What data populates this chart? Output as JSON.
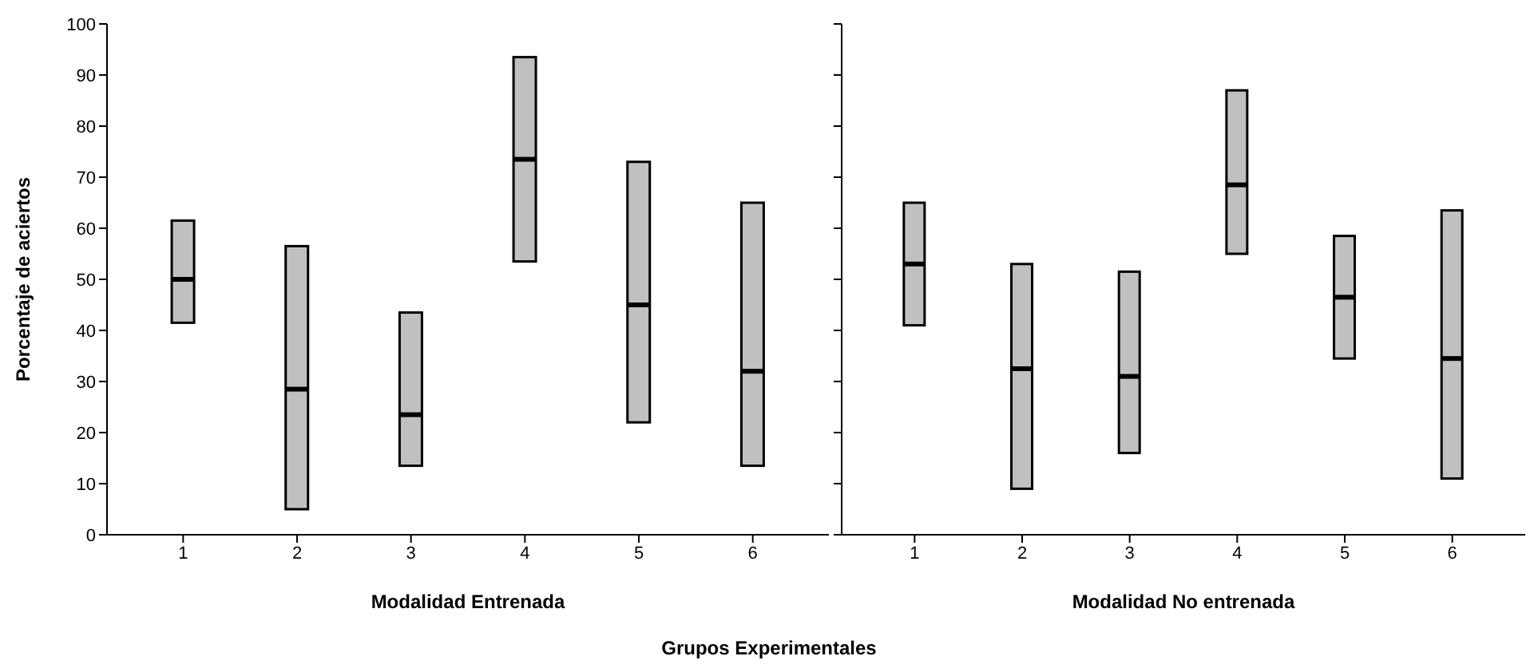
{
  "chart_data": [
    {
      "type": "box",
      "xlabel": "Modalidad Entrenada",
      "ylabel": "Porcentaje de aciertos",
      "categories": [
        "1",
        "2",
        "3",
        "4",
        "5",
        "6"
      ],
      "color": "#c0c0c0",
      "ylim": [
        0,
        100
      ],
      "yticks": [
        0,
        10,
        20,
        30,
        40,
        50,
        60,
        70,
        80,
        90,
        100
      ],
      "grid": false,
      "annotations": [
        "Grupos Experimentales"
      ],
      "boxes": [
        {
          "low": 41.5,
          "q1": 41.5,
          "median": 50,
          "q3": 61.5,
          "high": 61.5
        },
        {
          "low": 5,
          "q1": 5,
          "median": 28.5,
          "q3": 56.5,
          "high": 56.5
        },
        {
          "low": 13.5,
          "q1": 13.5,
          "median": 23.5,
          "q3": 43.5,
          "high": 43.5
        },
        {
          "low": 53.5,
          "q1": 53.5,
          "median": 73.5,
          "q3": 93.5,
          "high": 93.5
        },
        {
          "low": 22,
          "q1": 22,
          "median": 45,
          "q3": 73,
          "high": 73
        },
        {
          "low": 13.5,
          "q1": 13.5,
          "median": 32,
          "q3": 65,
          "high": 65
        }
      ]
    },
    {
      "type": "box",
      "xlabel": "Modalidad No entrenada",
      "categories": [
        "1",
        "2",
        "3",
        "4",
        "5",
        "6"
      ],
      "color": "#c0c0c0",
      "ylim": [
        0,
        100
      ],
      "yticks": [
        0,
        10,
        20,
        30,
        40,
        50,
        60,
        70,
        80,
        90,
        100
      ],
      "grid": false,
      "tick_labels": "x",
      "boxes": [
        {
          "low": 41,
          "q1": 41,
          "median": 53,
          "q3": 65,
          "high": 65
        },
        {
          "low": 9,
          "q1": 9,
          "median": 32.5,
          "q3": 53,
          "high": 53
        },
        {
          "low": 16,
          "q1": 16,
          "median": 31,
          "q3": 51.5,
          "high": 51.5
        },
        {
          "low": 55,
          "q1": 55,
          "median": 68.5,
          "q3": 87,
          "high": 87
        },
        {
          "low": 34.5,
          "q1": 34.5,
          "median": 46.5,
          "q3": 58.5,
          "high": 58.5
        },
        {
          "low": 11,
          "q1": 11,
          "median": 34.5,
          "q3": 63.5,
          "high": 63.5
        }
      ]
    }
  ]
}
